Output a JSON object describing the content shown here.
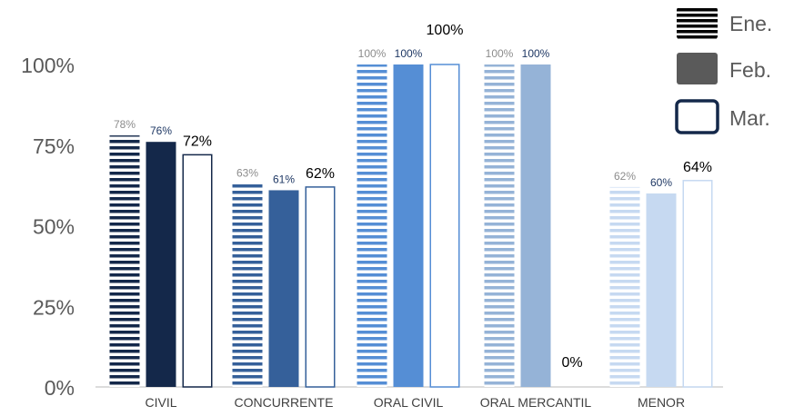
{
  "chart_data": {
    "type": "bar",
    "categories": [
      "CIVIL",
      "CONCURRENTE",
      "ORAL CIVIL",
      "ORAL MERCANTIL",
      "MENOR"
    ],
    "series": [
      {
        "name": "Ene.",
        "values": [
          78,
          63,
          100,
          100,
          62
        ],
        "labels": [
          "78%",
          "63%",
          "100%",
          "100%",
          "62%"
        ]
      },
      {
        "name": "Feb.",
        "values": [
          76,
          61,
          100,
          100,
          60
        ],
        "labels": [
          "76%",
          "61%",
          "100%",
          "100%",
          "60%"
        ]
      },
      {
        "name": "Mar.",
        "values": [
          72,
          62,
          100,
          0,
          64
        ],
        "labels": [
          "72%",
          "62%",
          "100%",
          "0%",
          "64%"
        ]
      }
    ],
    "category_colors": [
      "#14284a",
      "#35609a",
      "#558ed5",
      "#95b3d7",
      "#c6d9f1"
    ],
    "y_ticks": [
      {
        "value": 0,
        "label": "0%"
      },
      {
        "value": 25,
        "label": "25%"
      },
      {
        "value": 50,
        "label": "50%"
      },
      {
        "value": 75,
        "label": "75%"
      },
      {
        "value": 100,
        "label": "100%"
      }
    ],
    "ylim": [
      0,
      100
    ],
    "grid": false,
    "legend_position": "top-right",
    "series_styles": [
      "horizontal-stripes",
      "solid",
      "outline"
    ]
  }
}
